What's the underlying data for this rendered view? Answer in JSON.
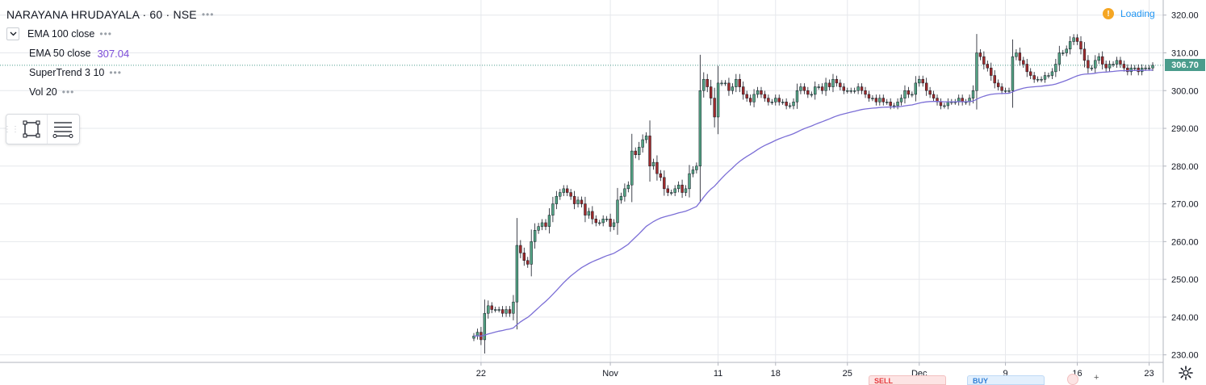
{
  "header": {
    "title": "NARAYANA HRUDAYALA · 60 · NSE",
    "indicators": [
      {
        "label": "EMA 100 close",
        "value": ""
      },
      {
        "label": "EMA 50 close",
        "value": "307.04"
      },
      {
        "label": "SuperTrend 3 10",
        "value": ""
      },
      {
        "label": "Vol 20",
        "value": ""
      }
    ]
  },
  "status": {
    "loading_label": "Loading",
    "warning_icon": "exclamation"
  },
  "last_price_tag": "306.70",
  "drawing_toolbar": {
    "tools": [
      "rectangle-icon",
      "horizontal-lines-icon"
    ]
  },
  "order_panel": {
    "sell_label": "SELL",
    "buy_label": "BUY"
  },
  "colors": {
    "up": "#53a384",
    "down": "#9e2a2b",
    "wick": "#131722",
    "ema50": "#7b6ed6",
    "grid": "#e6e8ec",
    "last_price_line": "#4a9c8c",
    "loading": "#2196f3",
    "warning": "#f5a623"
  },
  "chart_data": {
    "type": "candlestick",
    "y_axis": {
      "min": 228,
      "max": 324,
      "ticks": [
        "320.00",
        "310.00",
        "300.00",
        "290.00",
        "280.00",
        "270.00",
        "260.00",
        "250.00",
        "240.00",
        "230.00"
      ],
      "tick_values": [
        320,
        310,
        300,
        290,
        280,
        270,
        260,
        250,
        240,
        230
      ]
    },
    "x_axis": {
      "ticks": [
        "22",
        "Nov",
        "11",
        "18",
        "25",
        "Dec",
        "9",
        "16",
        "23"
      ],
      "tick_index": [
        2,
        38,
        68,
        84,
        104,
        124,
        148,
        168,
        188
      ]
    },
    "last_price": 306.7,
    "ema50_last": 307.04,
    "bar_count": 190,
    "close_series": [
      235,
      236,
      234,
      241,
      243,
      242,
      242,
      242,
      241,
      242,
      241,
      244,
      259,
      257,
      255,
      254,
      260,
      263,
      264,
      265,
      264,
      267,
      270,
      272,
      273,
      274,
      273,
      272,
      270,
      271,
      270,
      267,
      268,
      266,
      265,
      265,
      266,
      266,
      264,
      265,
      271,
      272,
      274,
      275,
      284,
      283,
      285,
      287,
      288,
      280,
      281,
      278,
      277,
      274,
      273,
      273,
      274,
      275,
      273,
      274,
      278,
      279,
      280,
      300,
      303,
      301,
      298,
      293,
      302,
      302,
      302,
      300,
      301,
      303,
      301,
      299,
      298,
      297,
      299,
      300,
      299,
      298,
      297,
      297,
      298,
      297,
      297,
      296,
      296,
      297,
      300,
      301,
      300,
      299,
      299,
      301,
      301,
      300,
      302,
      301,
      303,
      302,
      301,
      300,
      300,
      300,
      300,
      301,
      300,
      299,
      298,
      298,
      297,
      298,
      297,
      297,
      296,
      296,
      297,
      298,
      300,
      299,
      299,
      302,
      303,
      302,
      300,
      299,
      298,
      297,
      296,
      296,
      297,
      297,
      297,
      298,
      297,
      297,
      298,
      300,
      310,
      309,
      307,
      306,
      304,
      302,
      301,
      300,
      300,
      300,
      309,
      310,
      308,
      307,
      305,
      304,
      303,
      303,
      303,
      304,
      304,
      305,
      307,
      310,
      310,
      311,
      313,
      314,
      313,
      311,
      308,
      306,
      306,
      308,
      309,
      307,
      306,
      307,
      307,
      308,
      307,
      306,
      305,
      306,
      306,
      305,
      306,
      306,
      306,
      306.7
    ]
  }
}
